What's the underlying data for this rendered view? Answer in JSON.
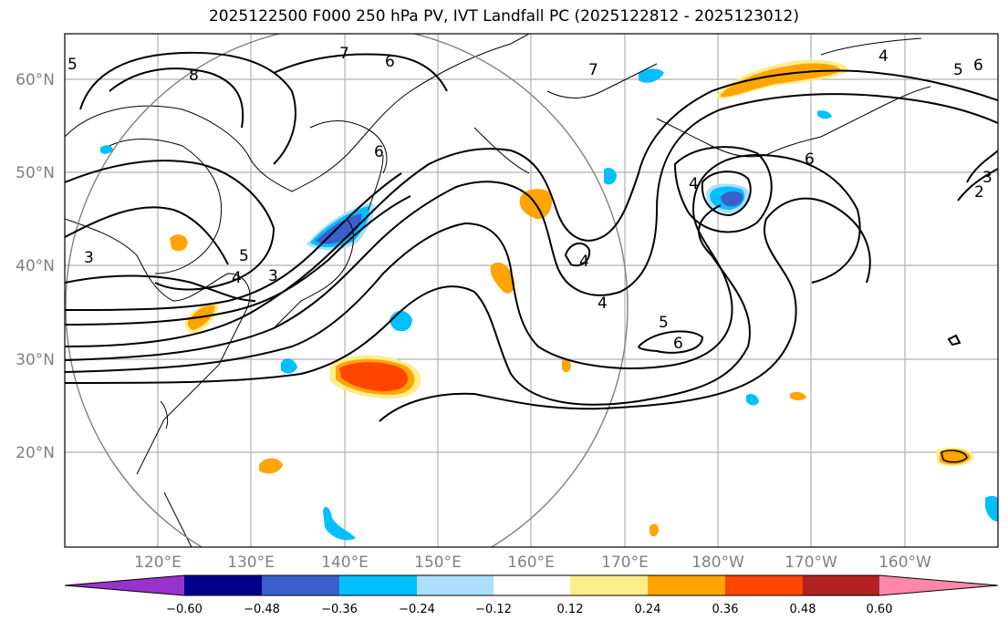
{
  "title": "2025122500 F000 250 hPa PV, IVT Landfall PC (2025122812 - 2025123012)",
  "map": {
    "lon_range": [
      110,
      210
    ],
    "lat_range": [
      10,
      65
    ],
    "lat_labels": [
      "60°N",
      "50°N",
      "40°N",
      "30°N",
      "20°N"
    ],
    "lon_labels": [
      "120°E",
      "130°E",
      "140°E",
      "150°E",
      "160°E",
      "170°E",
      "180°W",
      "170°W",
      "160°W"
    ],
    "contour_labels": [
      "8",
      "7",
      "6",
      "5",
      "4",
      "3",
      "6",
      "7",
      "6",
      "5",
      "4",
      "3",
      "5",
      "6",
      "4",
      "3",
      "2",
      "4",
      "4",
      "5",
      "6"
    ]
  },
  "colorbar": {
    "ticks": [
      "−0.60",
      "−0.48",
      "−0.36",
      "−0.24",
      "−0.12",
      "0.12",
      "0.24",
      "0.36",
      "0.48",
      "0.60"
    ],
    "colors": [
      "#9932CC",
      "#00008B",
      "#3A5FCD",
      "#00BFFF",
      "#ADDFFF",
      "#FFFFFF",
      "#FFEC8B",
      "#FFA500",
      "#FF4500",
      "#B22222",
      "#FF88AA"
    ]
  }
}
